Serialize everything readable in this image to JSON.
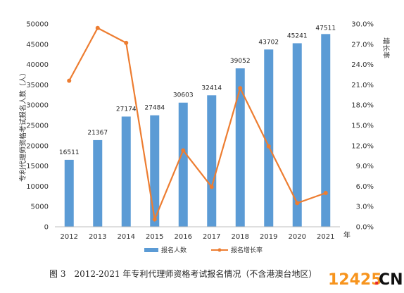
{
  "chart_data": {
    "type": "bar",
    "categories": [
      "2012",
      "2013",
      "2014",
      "2015",
      "2016",
      "2017",
      "2018",
      "2019",
      "2020",
      "2021"
    ],
    "x_unit_label": "年",
    "series": [
      {
        "name": "报名人数",
        "type": "bar",
        "axis": "left",
        "values": [
          16511,
          21367,
          27174,
          27484,
          30603,
          32414,
          39052,
          43702,
          45241,
          47511
        ],
        "color": "#5b9bd5"
      },
      {
        "name": "报名增长率",
        "type": "line",
        "axis": "right",
        "values": [
          21.6,
          29.4,
          27.2,
          1.1,
          11.3,
          5.9,
          20.5,
          11.9,
          3.5,
          5.0
        ],
        "color": "#ed7d31"
      }
    ],
    "data_labels": [
      "16511",
      "21367",
      "27174",
      "27484",
      "30603",
      "32414",
      "39052",
      "43702",
      "45241",
      "47511"
    ],
    "highlight_index": 9,
    "highlight_color": "#e8262b",
    "ylabel": "专利代理师资格考试报名人数（人）",
    "y2label": "增长率",
    "ylim": [
      0,
      50000
    ],
    "y_ticks": [
      "0",
      "5000",
      "10000",
      "15000",
      "20000",
      "25000",
      "30000",
      "35000",
      "40000",
      "45000",
      "50000"
    ],
    "y2lim": [
      0,
      30
    ],
    "y2_ticks": [
      "0.0%",
      "3.0%",
      "6.0%",
      "9.0%",
      "12.0%",
      "15.0%",
      "18.0%",
      "21.0%",
      "24.0%",
      "27.0%",
      "30.0%"
    ],
    "legend": [
      "报名人数",
      "报名增长率"
    ],
    "legend_position": "bottom",
    "grid": false
  },
  "caption": "图 3　2012-2021 年专利代理师资格考试报名情况（不含港澳台地区）",
  "watermark": {
    "left": "12425",
    "dot": ".",
    "right": "CN"
  }
}
